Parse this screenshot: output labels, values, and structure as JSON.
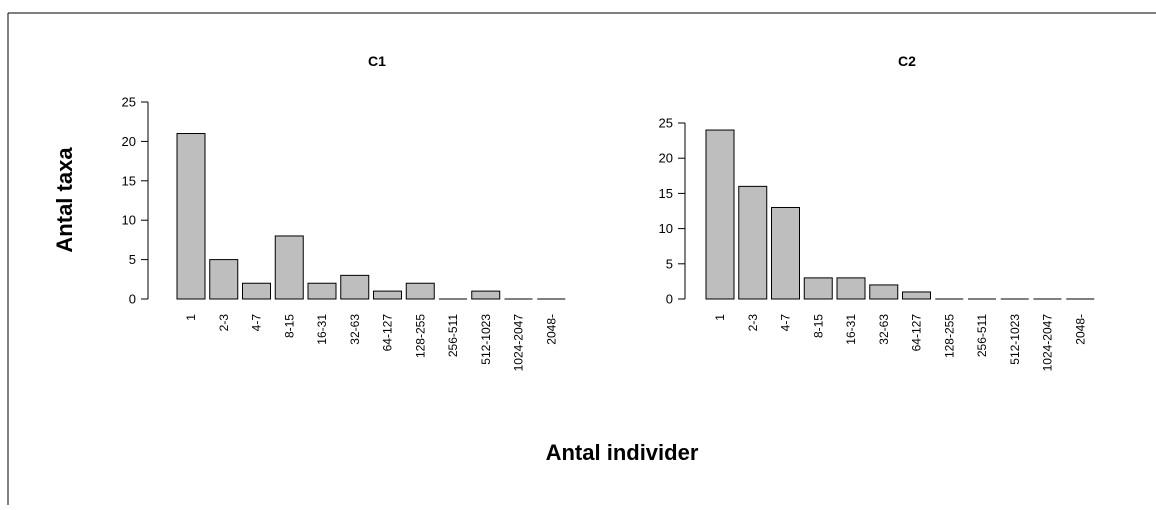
{
  "figure": {
    "ylabel": "Antal taxa",
    "xlabel": "Antal individer"
  },
  "chart_data": [
    {
      "type": "bar",
      "title": "C1",
      "categories": [
        "1",
        "2-3",
        "4-7",
        "8-15",
        "16-31",
        "32-63",
        "64-127",
        "128-255",
        "256-511",
        "512-1023",
        "1024-2047",
        "2048-"
      ],
      "values": [
        21,
        5,
        2,
        8,
        2,
        3,
        1,
        2,
        0,
        1,
        0,
        0
      ],
      "ylim": [
        0,
        25
      ],
      "yticks": [
        0,
        5,
        10,
        15,
        20,
        25
      ],
      "bar_color": "#bebebe",
      "grid": false
    },
    {
      "type": "bar",
      "title": "C2",
      "categories": [
        "1",
        "2-3",
        "4-7",
        "8-15",
        "16-31",
        "32-63",
        "64-127",
        "128-255",
        "256-511",
        "512-1023",
        "1024-2047",
        "2048-"
      ],
      "values": [
        24,
        16,
        13,
        3,
        3,
        2,
        1,
        0,
        0,
        0,
        0,
        0
      ],
      "ylim": [
        0,
        25
      ],
      "yticks": [
        0,
        5,
        10,
        15,
        20,
        25
      ],
      "bar_color": "#bebebe",
      "grid": false
    }
  ]
}
